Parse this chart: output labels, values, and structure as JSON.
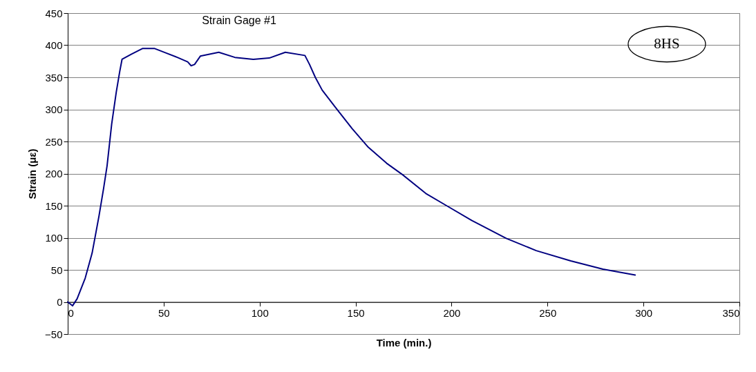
{
  "chart_data": {
    "type": "line",
    "title": "Strain Gage #1",
    "xlabel": "Time (min.)",
    "ylabel": "Strain (με)",
    "x": [
      0,
      2.5,
      4.9,
      9.1,
      12.7,
      16.3,
      18.7,
      20.5,
      22.9,
      25.3,
      27.1,
      28.3,
      33.1,
      39.1,
      45.1,
      51.1,
      57.1,
      62.5,
      64.3,
      66.1,
      69.1,
      78.7,
      87.1,
      96.7,
      105,
      113.4,
      123.6,
      126,
      129,
      132.6,
      139.8,
      148.2,
      156.6,
      166.2,
      174.6,
      186.6,
      197.4,
      210.5,
      228.5,
      244.1,
      262.1,
      278.9,
      295.7
    ],
    "series": [
      {
        "color": "#000080",
        "values": [
          0,
          -6,
          5,
          37,
          76,
          134,
          177,
          212,
          277,
          327,
          359,
          378,
          386,
          395,
          395,
          388,
          381,
          374,
          368,
          370,
          383,
          389,
          381,
          378,
          380,
          389,
          384,
          370,
          350,
          330,
          302,
          270,
          241,
          216,
          198,
          169,
          150,
          127,
          99,
          80,
          64,
          51,
          42
        ]
      }
    ],
    "xlim": [
      0,
      350
    ],
    "ylim": [
      -50,
      450
    ],
    "xticks": [
      0,
      50,
      100,
      150,
      200,
      250,
      300,
      350
    ],
    "yticks": [
      -50,
      0,
      50,
      100,
      150,
      200,
      250,
      300,
      350,
      400,
      450
    ],
    "grid": "y",
    "annotations": [
      "8HS"
    ]
  }
}
